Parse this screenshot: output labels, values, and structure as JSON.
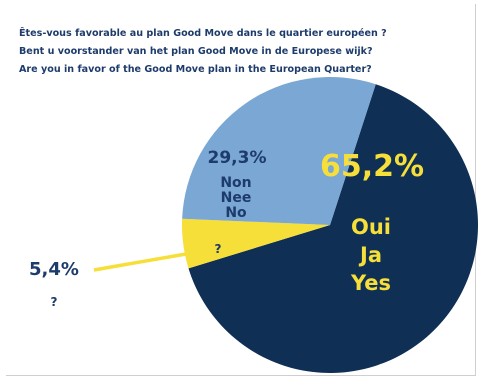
{
  "titles": [
    "Êtes-vous favorable au plan Good Move dans le quartier européen ?",
    "Bent u voorstander van het plan Good Move in de Europese wijk?",
    "Are you in favor of the Good Move plan in the European Quarter?"
  ],
  "colors": {
    "oui": "#0f2f55",
    "non": "#7aa7d3",
    "unknown": "#f7df39",
    "text_dark": "#1d3b6b",
    "text_pct_big": "#f7df39"
  },
  "chart_data": {
    "type": "pie",
    "title": "",
    "slices": [
      {
        "key": "oui",
        "value": 65.2,
        "percent_label": "65,2%",
        "lines": [
          "Oui",
          "Ja",
          "Yes"
        ]
      },
      {
        "key": "unknown",
        "value": 5.4,
        "percent_label": "5,4%",
        "lines": [
          "?"
        ],
        "outer_line": "?"
      },
      {
        "key": "non",
        "value": 29.3,
        "percent_label": "29,3%",
        "lines": [
          "Non",
          "Nee",
          "No"
        ]
      }
    ]
  }
}
